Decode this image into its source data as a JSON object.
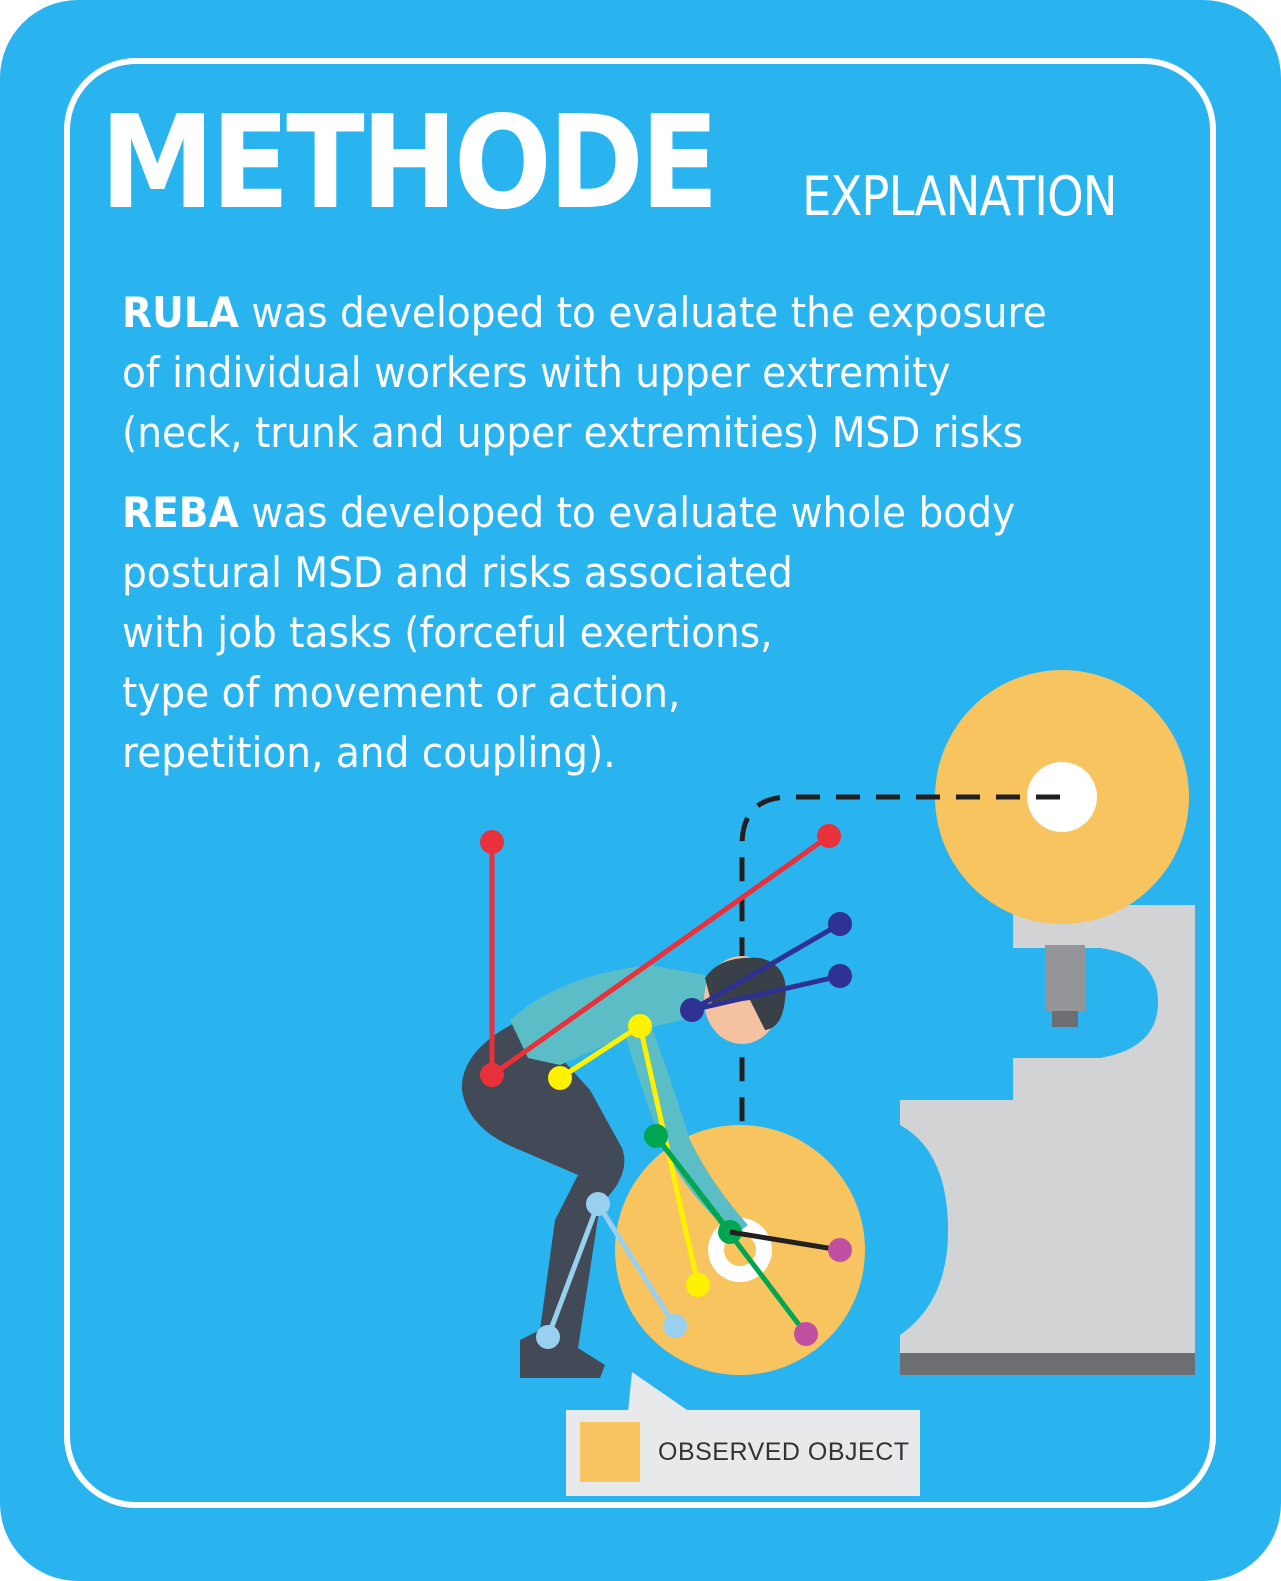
{
  "header": {
    "title": "METHODE",
    "subtitle": "EXPLANATION"
  },
  "rula": {
    "term": "RULA",
    "lines": [
      " was developed to evaluate the exposure",
      "of individual workers with upper extremity",
      "(neck, trunk and upper extremities) MSD risks"
    ]
  },
  "reba": {
    "term": "REBA",
    "lines": [
      " was developed to evaluate whole body",
      "postural MSD and risks associated",
      "with job tasks (forceful exertions,",
      "type of movement or action,",
      "repetition, and coupling)."
    ]
  },
  "legend": {
    "label": "OBSERVED OBJECT"
  },
  "colors": {
    "background": "#29b4f0",
    "observed_object": "#f7c45f",
    "machine": "#d1d3d4",
    "trunk_marker": "#e8313a",
    "neck_marker": "#2e3192",
    "upper_arm_marker": "#fff200",
    "lower_arm_marker": "#00a651",
    "wrist_marker": "#c0509f",
    "leg_marker": "#9ad0ef"
  }
}
